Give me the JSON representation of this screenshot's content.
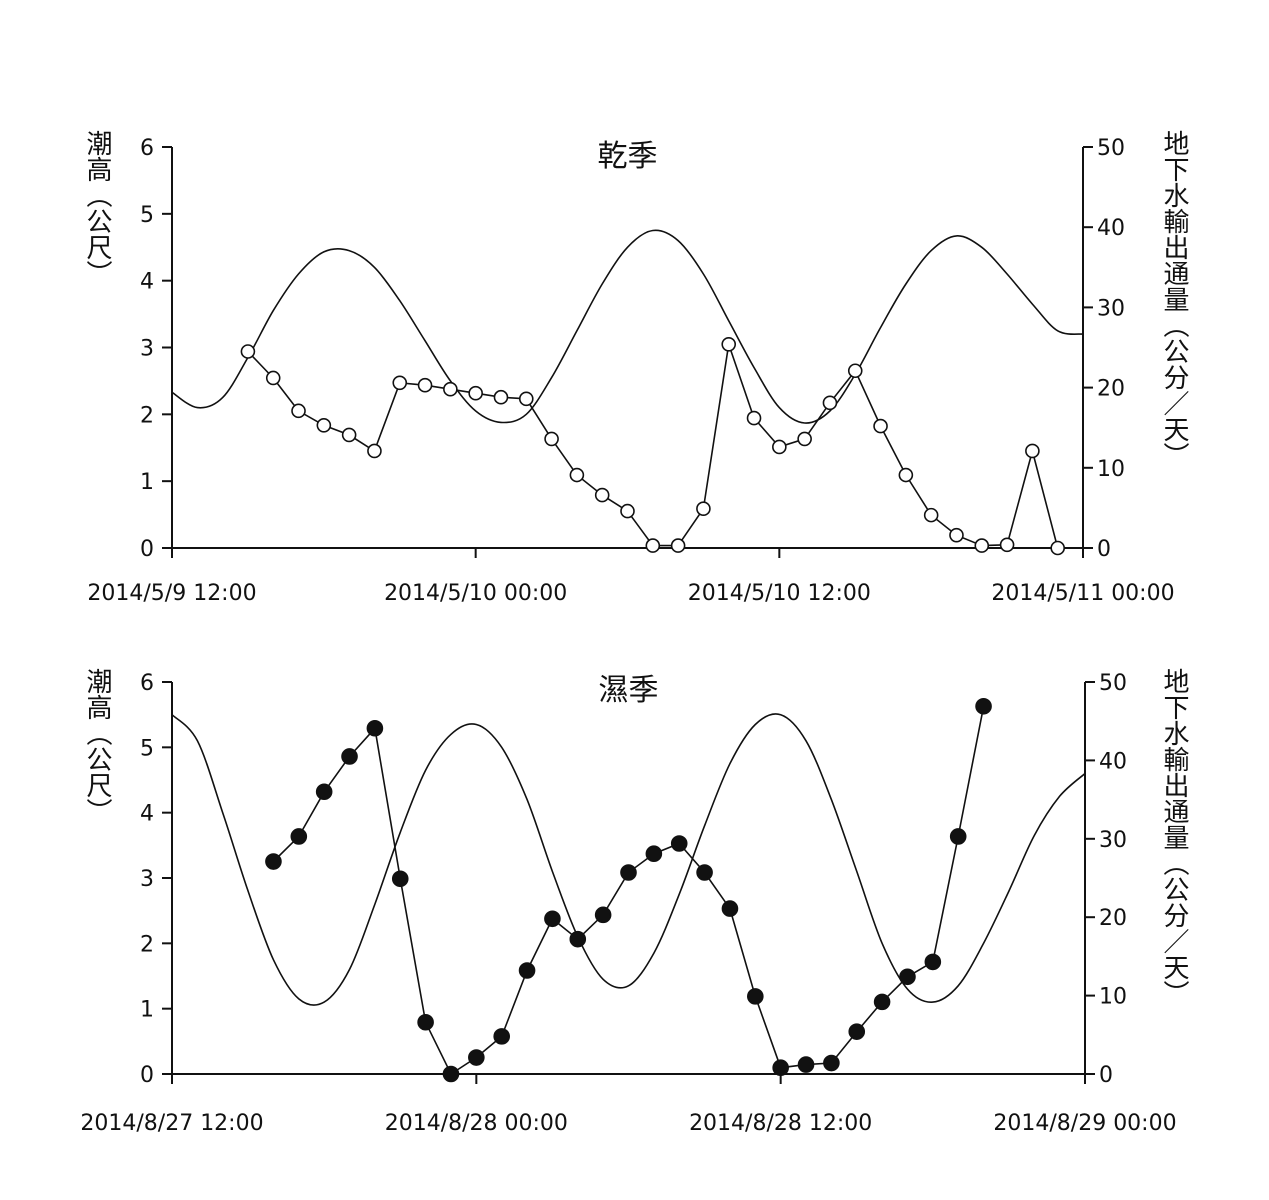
{
  "chart_data": [
    {
      "type": "line",
      "title": "乾季",
      "ylabel_left": "潮高（公尺）",
      "ylabel_right": "地下水輸出通量（公分／天）",
      "x_tick_labels": [
        "2014/5/9 12:00",
        "2014/5/10 00:00",
        "2014/5/10 12:00",
        "2014/5/11 00:00"
      ],
      "xlim": [
        "2014/5/9 12:00",
        "2014/5/11 00:00"
      ],
      "ylim_left": [
        0,
        6
      ],
      "yticks_left": [
        0,
        1,
        2,
        3,
        4,
        5,
        6
      ],
      "ylim_right": [
        0,
        50
      ],
      "yticks_right": [
        0,
        10,
        20,
        30,
        40,
        50
      ],
      "series": [
        {
          "role": "tide",
          "axis": "left",
          "style": "line",
          "x": [
            "2014/5/9 12:00",
            "2014/5/9 13:00",
            "2014/5/9 14:00",
            "2014/5/9 15:00",
            "2014/5/9 16:00",
            "2014/5/9 17:00",
            "2014/5/9 18:00",
            "2014/5/9 19:00",
            "2014/5/9 20:00",
            "2014/5/9 21:00",
            "2014/5/9 22:00",
            "2014/5/9 23:00",
            "2014/5/10 00:00",
            "2014/5/10 01:00",
            "2014/5/10 02:00",
            "2014/5/10 03:00",
            "2014/5/10 04:00",
            "2014/5/10 05:00",
            "2014/5/10 06:00",
            "2014/5/10 07:00",
            "2014/5/10 08:00",
            "2014/5/10 09:00",
            "2014/5/10 10:00",
            "2014/5/10 11:00",
            "2014/5/10 12:00",
            "2014/5/10 13:00",
            "2014/5/10 14:00",
            "2014/5/10 15:00",
            "2014/5/10 16:00",
            "2014/5/10 17:00",
            "2014/5/10 18:00",
            "2014/5/10 19:00",
            "2014/5/10 20:00",
            "2014/5/10 21:00",
            "2014/5/10 22:00",
            "2014/5/10 23:00",
            "2014/5/11 00:00"
          ],
          "values": [
            2.33,
            2.1,
            2.25,
            2.85,
            3.55,
            4.1,
            4.43,
            4.45,
            4.2,
            3.7,
            3.1,
            2.5,
            2.05,
            1.88,
            2.0,
            2.55,
            3.25,
            3.95,
            4.5,
            4.75,
            4.6,
            4.1,
            3.4,
            2.7,
            2.1,
            1.87,
            2.05,
            2.6,
            3.3,
            3.95,
            4.45,
            4.67,
            4.5,
            4.1,
            3.65,
            3.25,
            3.2
          ]
        },
        {
          "role": "groundwater flux",
          "axis": "right",
          "style": "line with open circles",
          "x": [
            "2014/5/9 15:00",
            "2014/5/9 16:00",
            "2014/5/9 17:00",
            "2014/5/9 18:00",
            "2014/5/9 19:00",
            "2014/5/9 20:00",
            "2014/5/9 21:00",
            "2014/5/9 22:00",
            "2014/5/9 23:00",
            "2014/5/10 00:00",
            "2014/5/10 01:00",
            "2014/5/10 02:00",
            "2014/5/10 03:00",
            "2014/5/10 04:00",
            "2014/5/10 05:00",
            "2014/5/10 06:00",
            "2014/5/10 07:00",
            "2014/5/10 08:00",
            "2014/5/10 09:00",
            "2014/5/10 10:00",
            "2014/5/10 11:00",
            "2014/5/10 12:00",
            "2014/5/10 13:00",
            "2014/5/10 14:00",
            "2014/5/10 15:00",
            "2014/5/10 16:00",
            "2014/5/10 17:00",
            "2014/5/10 18:00",
            "2014/5/10 19:00",
            "2014/5/10 20:00",
            "2014/5/10 21:00",
            "2014/5/10 22:00",
            "2014/5/10 23:00"
          ],
          "values": [
            24.5,
            21.2,
            17.1,
            15.3,
            14.1,
            12.1,
            20.6,
            20.3,
            19.8,
            19.3,
            18.8,
            18.6,
            13.6,
            9.1,
            6.6,
            4.6,
            0.3,
            0.3,
            4.9,
            25.4,
            16.2,
            12.6,
            13.6,
            18.1,
            22.1,
            15.2,
            9.1,
            4.1,
            1.6,
            0.3,
            0.4,
            12.1,
            0
          ]
        }
      ]
    },
    {
      "type": "line",
      "title": "濕季",
      "ylabel_left": "潮高（公尺）",
      "ylabel_right": "地下水輸出通量（公分／天）",
      "x_tick_labels": [
        "2014/8/27 12:00",
        "2014/8/28 00:00",
        "2014/8/28 12:00",
        "2014/8/29 00:00"
      ],
      "xlim": [
        "2014/8/27 12:00",
        "2014/8/29 00:00"
      ],
      "ylim_left": [
        0,
        6
      ],
      "yticks_left": [
        0,
        1,
        2,
        3,
        4,
        5,
        6
      ],
      "ylim_right": [
        0,
        50
      ],
      "yticks_right": [
        0,
        10,
        20,
        30,
        40,
        50
      ],
      "series": [
        {
          "role": "tide",
          "axis": "left",
          "style": "line",
          "x": [
            "2014/8/27 12:00",
            "2014/8/27 13:00",
            "2014/8/27 14:00",
            "2014/8/27 15:00",
            "2014/8/27 16:00",
            "2014/8/27 17:00",
            "2014/8/27 18:00",
            "2014/8/27 19:00",
            "2014/8/27 20:00",
            "2014/8/27 21:00",
            "2014/8/27 22:00",
            "2014/8/27 23:00",
            "2014/8/28 00:00",
            "2014/8/28 01:00",
            "2014/8/28 02:00",
            "2014/8/28 03:00",
            "2014/8/28 04:00",
            "2014/8/28 05:00",
            "2014/8/28 06:00",
            "2014/8/28 07:00",
            "2014/8/28 08:00",
            "2014/8/28 09:00",
            "2014/8/28 10:00",
            "2014/8/28 11:00",
            "2014/8/28 12:00",
            "2014/8/28 13:00",
            "2014/8/28 14:00",
            "2014/8/28 15:00",
            "2014/8/28 16:00",
            "2014/8/28 17:00",
            "2014/8/28 18:00",
            "2014/8/28 19:00",
            "2014/8/28 20:00",
            "2014/8/28 21:00",
            "2014/8/28 22:00",
            "2014/8/28 23:00",
            "2014/8/29 00:00"
          ],
          "values": [
            5.5,
            5.1,
            4.0,
            2.8,
            1.75,
            1.15,
            1.1,
            1.6,
            2.6,
            3.7,
            4.65,
            5.2,
            5.35,
            5.0,
            4.2,
            3.1,
            2.1,
            1.45,
            1.35,
            1.85,
            2.75,
            3.8,
            4.75,
            5.35,
            5.5,
            5.1,
            4.2,
            3.1,
            2.0,
            1.3,
            1.1,
            1.35,
            2.0,
            2.8,
            3.65,
            4.25,
            4.6
          ]
        },
        {
          "role": "groundwater flux",
          "axis": "right",
          "style": "line with filled circles",
          "x": [
            "2014/8/27 16:00",
            "2014/8/27 17:00",
            "2014/8/27 18:00",
            "2014/8/27 19:00",
            "2014/8/27 20:00",
            "2014/8/27 21:00",
            "2014/8/27 22:00",
            "2014/8/27 23:00",
            "2014/8/28 00:00",
            "2014/8/28 01:00",
            "2014/8/28 02:00",
            "2014/8/28 03:00",
            "2014/8/28 04:00",
            "2014/8/28 05:00",
            "2014/8/28 06:00",
            "2014/8/28 07:00",
            "2014/8/28 08:00",
            "2014/8/28 09:00",
            "2014/8/28 10:00",
            "2014/8/28 11:00",
            "2014/8/28 12:00",
            "2014/8/28 13:00",
            "2014/8/28 14:00",
            "2014/8/28 15:00",
            "2014/8/28 16:00",
            "2014/8/28 17:00",
            "2014/8/28 18:00",
            "2014/8/28 19:00",
            "2014/8/28 20:00",
            "2014/8/28 21:00",
            "2014/8/28 22:00",
            "2014/8/28 23:00",
            "2014/8/29 00:00"
          ],
          "values": [
            27.1,
            30.3,
            36.0,
            40.5,
            44.1,
            24.9,
            6.6,
            0,
            2.1,
            4.8,
            13.2,
            19.8,
            17.2,
            20.3,
            25.7,
            28.1,
            29.4,
            25.7,
            21.1,
            9.9,
            0.8,
            1.2,
            1.4,
            5.4,
            9.2,
            12.4,
            14.3,
            30.3,
            46.9,
            null,
            null,
            null,
            null
          ]
        }
      ]
    }
  ]
}
